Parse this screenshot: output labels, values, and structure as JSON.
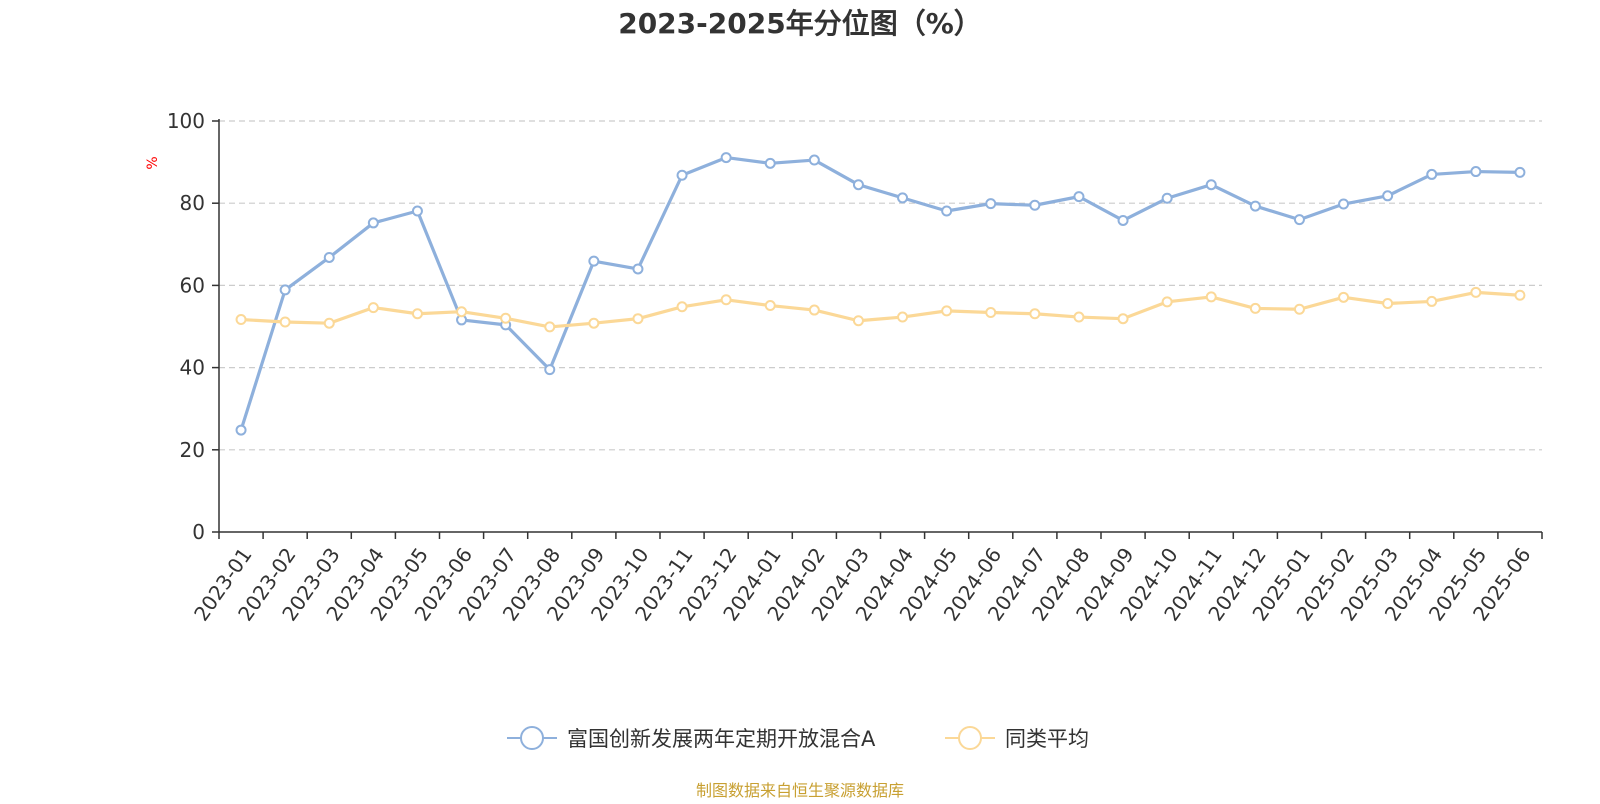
{
  "colors": {
    "series_fund": "#8eb0dc",
    "series_avg": "#fbd897",
    "axis": "#333333",
    "grid": "#cccccc",
    "ylabel": "#ff0000",
    "source": "#c8a032",
    "marker_fill": "#ffffff"
  },
  "source_text": "制图数据来自恒生聚源数据库",
  "chart_data": {
    "type": "line",
    "title": "2023-2025年分位图（%）",
    "xlabel": "",
    "ylabel": "%",
    "ylim": [
      0,
      100
    ],
    "yticks": [
      0,
      20,
      40,
      60,
      80,
      100
    ],
    "grid": true,
    "legend_position": "bottom-center",
    "categories": [
      "2023-01",
      "2023-02",
      "2023-03",
      "2023-04",
      "2023-05",
      "2023-06",
      "2023-07",
      "2023-08",
      "2023-09",
      "2023-10",
      "2023-11",
      "2023-12",
      "2024-01",
      "2024-02",
      "2024-03",
      "2024-04",
      "2024-05",
      "2024-06",
      "2024-07",
      "2024-08",
      "2024-09",
      "2024-10",
      "2024-11",
      "2024-12",
      "2025-01",
      "2025-02",
      "2025-03",
      "2025-04",
      "2025-05",
      "2025-06"
    ],
    "series": [
      {
        "name": "富国创新发展两年定期开放混合A",
        "color": "#8eb0dc",
        "values": [
          24.8,
          58.9,
          66.8,
          75.2,
          78.1,
          51.6,
          50.4,
          39.5,
          65.9,
          64.0,
          86.8,
          91.1,
          89.7,
          90.5,
          84.5,
          81.3,
          78.1,
          79.9,
          79.5,
          81.6,
          75.8,
          81.2,
          84.5,
          79.3,
          76.0,
          79.8,
          81.8,
          87.0,
          87.7,
          87.5
        ]
      },
      {
        "name": "同类平均",
        "color": "#fbd897",
        "values": [
          51.7,
          51.1,
          50.8,
          54.6,
          53.1,
          53.6,
          52.0,
          49.9,
          50.8,
          51.9,
          54.8,
          56.5,
          55.1,
          54.0,
          51.4,
          52.3,
          53.8,
          53.4,
          53.1,
          52.3,
          51.9,
          56.0,
          57.2,
          54.4,
          54.2,
          57.1,
          55.6,
          56.1,
          58.3,
          57.6
        ]
      }
    ]
  }
}
